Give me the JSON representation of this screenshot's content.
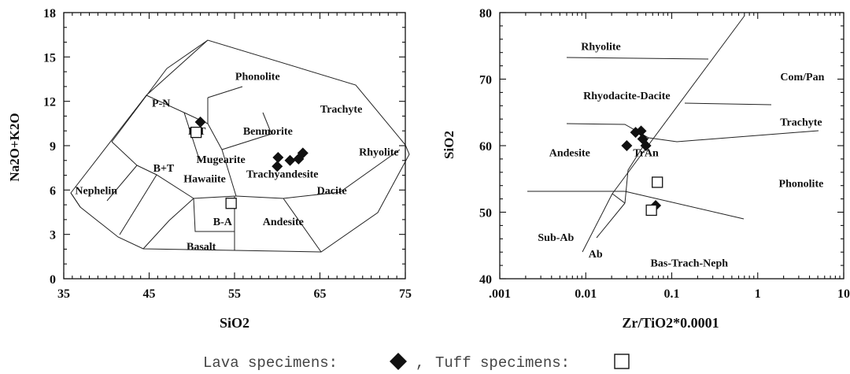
{
  "chart_data": [
    {
      "type": "scatter",
      "title": "",
      "xlabel": "SiO2",
      "ylabel": "Na2O+K2O",
      "xlim": [
        35,
        75
      ],
      "ylim": [
        0,
        18
      ],
      "x_ticks": [
        "35",
        "45",
        "55",
        "65",
        "75"
      ],
      "y_ticks": [
        "0",
        "3",
        "6",
        "9",
        "12",
        "15",
        "18"
      ],
      "grid": false,
      "field_labels": [
        {
          "text": "Phonolite",
          "x": 57.7,
          "y": 13.7
        },
        {
          "text": "P-N",
          "x": 46.4,
          "y": 11.9
        },
        {
          "text": "Trachyte",
          "x": 67.5,
          "y": 11.5
        },
        {
          "text": "P-T",
          "x": 50.6,
          "y": 10.0
        },
        {
          "text": "Benmorite",
          "x": 58.9,
          "y": 10.0
        },
        {
          "text": "Rhyolite",
          "x": 71.9,
          "y": 8.6
        },
        {
          "text": "B+T",
          "x": 46.7,
          "y": 7.5
        },
        {
          "text": "Mugearite",
          "x": 53.4,
          "y": 8.1
        },
        {
          "text": "Trachyandesite",
          "x": 60.6,
          "y": 7.1
        },
        {
          "text": "Hawaiite",
          "x": 51.5,
          "y": 6.8
        },
        {
          "text": "Nephelin",
          "x": 38.8,
          "y": 6.0
        },
        {
          "text": "Dacite",
          "x": 66.4,
          "y": 6.0
        },
        {
          "text": "B-A",
          "x": 53.6,
          "y": 3.9
        },
        {
          "text": "Andesite",
          "x": 60.7,
          "y": 3.9
        },
        {
          "text": "Basalt",
          "x": 51.1,
          "y": 2.2
        }
      ],
      "series": [
        {
          "name": "Lava specimens",
          "marker": "diamond",
          "points": [
            [
              51.0,
              10.6
            ],
            [
              60.0,
              7.6
            ],
            [
              60.1,
              8.2
            ],
            [
              61.5,
              8.0
            ],
            [
              62.5,
              8.1
            ],
            [
              63.0,
              8.5
            ]
          ]
        },
        {
          "name": "Tuff specimens",
          "marker": "square",
          "points": [
            [
              50.5,
              9.9
            ],
            [
              54.6,
              5.1
            ]
          ]
        }
      ]
    },
    {
      "type": "scatter",
      "title": "",
      "xlabel": "Zr/TiO2*0.0001",
      "ylabel": "SiO2",
      "x_scale": "log",
      "xlim": [
        0.001,
        10
      ],
      "ylim": [
        40,
        80
      ],
      "x_ticks": [
        ".001",
        "0.01",
        "0.1",
        "1",
        "10"
      ],
      "y_ticks": [
        "40",
        "50",
        "60",
        "70",
        "80"
      ],
      "grid": false,
      "field_labels": [
        {
          "text": "Rhyolite",
          "x": 0.015,
          "y": 75.0
        },
        {
          "text": "Com/Pan",
          "x": 3.3,
          "y": 70.4
        },
        {
          "text": "Rhyodacite-Dacite",
          "x": 0.03,
          "y": 67.6
        },
        {
          "text": "Trachyte",
          "x": 3.2,
          "y": 63.6
        },
        {
          "text": "Andesite",
          "x": 0.0065,
          "y": 59.0
        },
        {
          "text": "TrAn",
          "x": 0.05,
          "y": 59.0
        },
        {
          "text": "Phonolite",
          "x": 3.2,
          "y": 54.4
        },
        {
          "text": "Sub-Ab",
          "x": 0.0045,
          "y": 46.3
        },
        {
          "text": "Ab",
          "x": 0.013,
          "y": 43.8
        },
        {
          "text": "Bas-Trach-Neph",
          "x": 0.16,
          "y": 42.4
        }
      ],
      "series": [
        {
          "name": "Lava specimens",
          "marker": "diamond",
          "points": [
            [
              0.03,
              60.0
            ],
            [
              0.038,
              62.0
            ],
            [
              0.044,
              62.2
            ],
            [
              0.046,
              61.0
            ],
            [
              0.05,
              60.0
            ],
            [
              0.065,
              51.0
            ]
          ]
        },
        {
          "name": "Tuff specimens",
          "marker": "square",
          "points": [
            [
              0.068,
              54.5
            ],
            [
              0.058,
              50.3
            ]
          ]
        }
      ]
    }
  ],
  "legend": {
    "lava_label": "Lava specimens:",
    "separator": ",",
    "tuff_label": "Tuff specimens:"
  }
}
